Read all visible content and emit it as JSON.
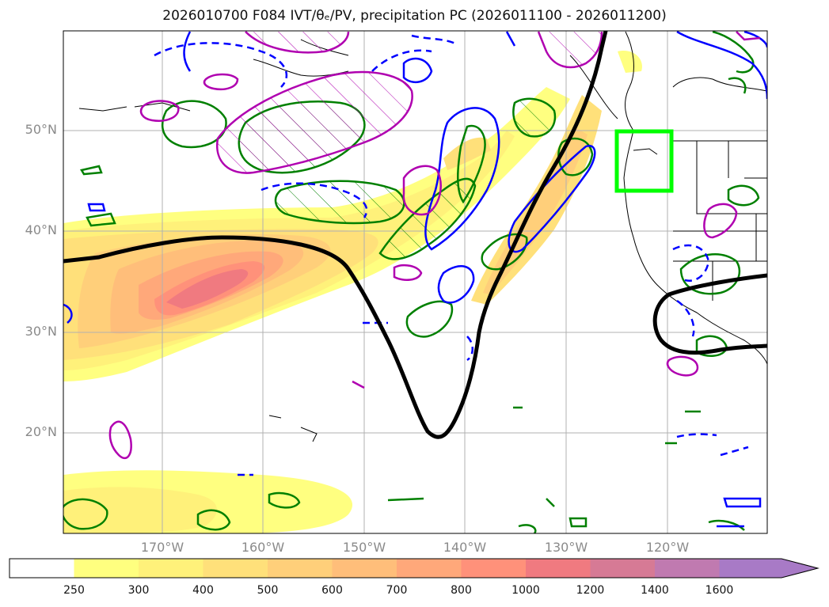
{
  "title": "2026010700 F084 IVT/θₑ/PV, precipitation PC (2026011100 - 2026011200)",
  "lat_labels": [
    "50°N",
    "40°N",
    "30°N",
    "20°N"
  ],
  "lon_labels": [
    "170°W",
    "160°W",
    "150°W",
    "140°W",
    "130°W",
    "120°W"
  ],
  "colorbar": {
    "levels": [
      "250",
      "300",
      "400",
      "500",
      "600",
      "700",
      "800",
      "1000",
      "1200",
      "1400",
      "1600"
    ],
    "colors": [
      "#ffff7f",
      "#fff17a",
      "#ffe07a",
      "#ffcf7a",
      "#ffbe7a",
      "#ffa87a",
      "#ff917a",
      "#f07a80",
      "#d67a95",
      "#c07ab0",
      "#a87ac6"
    ],
    "extend": "max"
  },
  "colors": {
    "ivt_contour": "#000000",
    "theta_e": "#008000",
    "pv_positive": "#0000ff",
    "precip_pc": "#b000b0",
    "target_box": "#00ff00"
  }
}
